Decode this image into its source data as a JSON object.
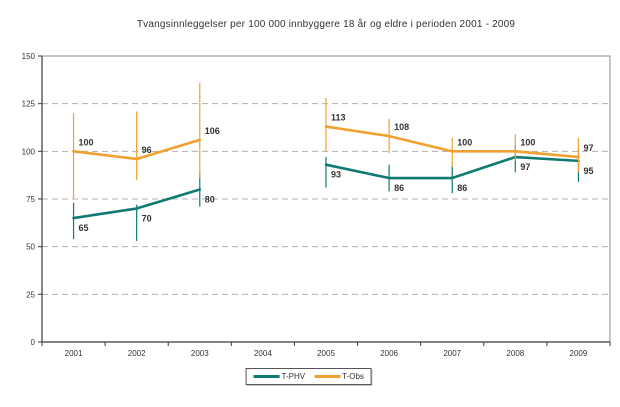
{
  "chart_data": {
    "type": "line",
    "title": "Tvangsinnleggelser per 100 000 innbyggere 18 år og eldre i perioden 2001 - 2009",
    "categories": [
      "2001",
      "2002",
      "2003",
      "2004",
      "2005",
      "2006",
      "2007",
      "2008",
      "2009"
    ],
    "ylim": [
      0,
      150
    ],
    "yticks": [
      0,
      25,
      50,
      75,
      100,
      125,
      150
    ],
    "grid": "horizontal-dashed",
    "legend_position": "bottom-center",
    "series": [
      {
        "name": "T-PHV",
        "color": "#0E7A72",
        "values": [
          65,
          70,
          80,
          null,
          93,
          86,
          86,
          97,
          95
        ],
        "error_bars": [
          [
            54,
            73
          ],
          [
            53,
            72
          ],
          [
            71,
            89
          ],
          null,
          [
            81,
            97
          ],
          [
            79,
            93
          ],
          [
            78,
            92
          ],
          [
            89,
            103
          ],
          [
            84,
            101
          ]
        ]
      },
      {
        "name": "T-Obs",
        "color": "#F0A12F",
        "values": [
          100,
          96,
          106,
          null,
          113,
          108,
          100,
          100,
          97
        ],
        "error_bars": [
          [
            75,
            120
          ],
          [
            85,
            121
          ],
          [
            86,
            136
          ],
          null,
          [
            100,
            128
          ],
          [
            99,
            117
          ],
          [
            92,
            107
          ],
          [
            95,
            109
          ],
          [
            89,
            107
          ]
        ]
      }
    ]
  },
  "legend": {
    "items": [
      {
        "label": "T-PHV",
        "color": "#0E7A72"
      },
      {
        "label": "T-Obs",
        "color": "#F0A12F"
      }
    ]
  },
  "colors": {
    "gridline": "#b0b0b0",
    "plot_border": "#8c8c8c",
    "axis": "#3a3a3a",
    "text": "#333333"
  }
}
